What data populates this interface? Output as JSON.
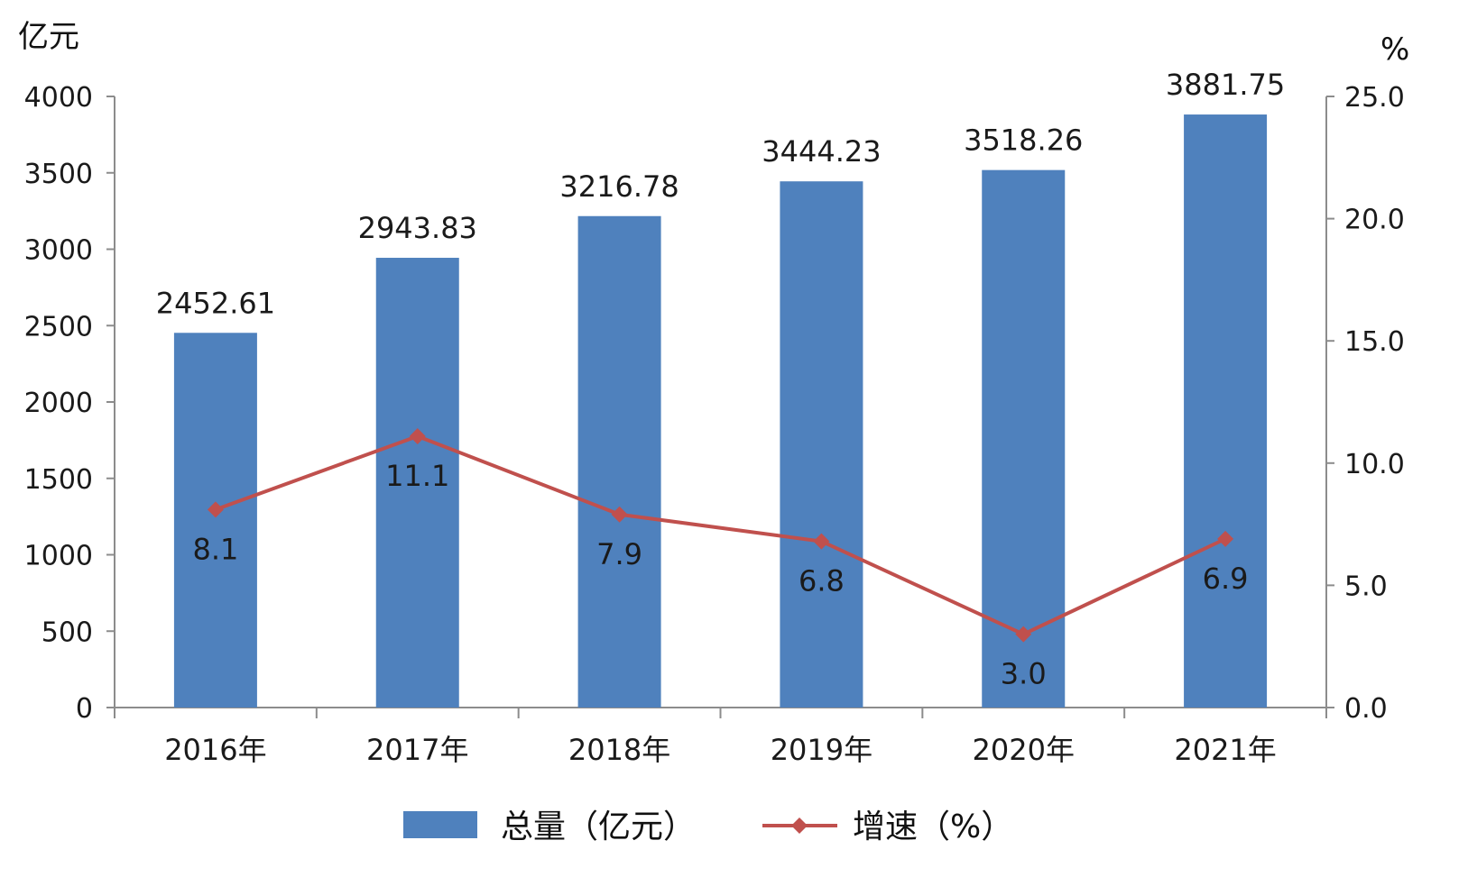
{
  "chart_data": {
    "type": "bar",
    "categories": [
      "2016年",
      "2017年",
      "2018年",
      "2019年",
      "2020年",
      "2021年"
    ],
    "series": [
      {
        "name": "总量（亿元）",
        "type": "bar",
        "axis": "left",
        "color": "#4f81bd",
        "values": [
          2452.61,
          2943.83,
          3216.78,
          3444.23,
          3518.26,
          3881.75
        ],
        "labels": [
          "2452.61",
          "2943.83",
          "3216.78",
          "3444.23",
          "3518.26",
          "3881.75"
        ]
      },
      {
        "name": "增速（%）",
        "type": "line",
        "axis": "right",
        "color": "#c0504d",
        "marker": "diamond",
        "values": [
          8.1,
          11.1,
          7.9,
          6.8,
          3.0,
          6.9
        ],
        "labels": [
          "8.1",
          "11.1",
          "7.9",
          "6.8",
          "3.0",
          "6.9"
        ]
      }
    ],
    "y_left": {
      "unit": "亿元",
      "ylim": [
        0,
        4000
      ],
      "ticks": [
        "0",
        "500",
        "1000",
        "1500",
        "2000",
        "2500",
        "3000",
        "3500",
        "4000"
      ]
    },
    "y_right": {
      "unit": "%",
      "ylim": [
        0,
        25
      ],
      "ticks": [
        "0.0",
        "5.0",
        "10.0",
        "15.0",
        "20.0",
        "25.0"
      ]
    },
    "grid": false,
    "legend_position": "bottom"
  }
}
